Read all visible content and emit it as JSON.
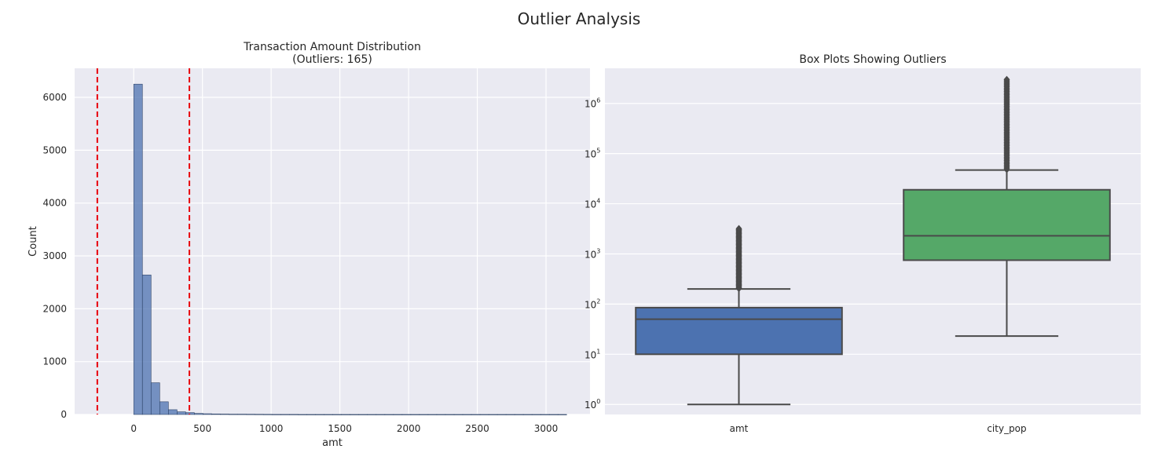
{
  "figure": {
    "suptitle": "Outlier Analysis"
  },
  "chart_data": [
    {
      "type": "bar",
      "title_line1": "Transaction Amount Distribution",
      "title_line2": "(Outliers: 165)",
      "xlabel": "amt",
      "ylabel": "Count",
      "xlim": [
        -430,
        3320
      ],
      "ylim": [
        0,
        6550
      ],
      "xticks": [
        0,
        500,
        1000,
        1500,
        2000,
        2500,
        3000
      ],
      "yticks": [
        0,
        1000,
        2000,
        3000,
        4000,
        5000,
        6000
      ],
      "bin_width": 63,
      "bin_start": 0,
      "counts": [
        6250,
        2640,
        600,
        240,
        90,
        50,
        35,
        20,
        14,
        10,
        8,
        6,
        6,
        5,
        4,
        3,
        2,
        2,
        2,
        1,
        1,
        1,
        1,
        1,
        1,
        1,
        1,
        1,
        1,
        1,
        1,
        1,
        1,
        1,
        1,
        1,
        1,
        1,
        1,
        1,
        1,
        1,
        1,
        1,
        1,
        1,
        1,
        1,
        1,
        1
      ],
      "threshold_lines": [
        -265,
        405
      ],
      "bar_color": "#4c72b0",
      "line_color": "#e8000b",
      "grid": true
    },
    {
      "type": "box",
      "title": "Box Plots Showing Outliers",
      "yscale": "log",
      "ylim_log10": [
        -0.2,
        6.7
      ],
      "ytick_exponents": [
        "0",
        "1",
        "2",
        "3",
        "4",
        "5",
        "6"
      ],
      "categories": [
        "amt",
        "city_pop"
      ],
      "boxes": [
        {
          "name": "amt",
          "whisker_low": 1,
          "q1": 10,
          "median": 50,
          "q3": 85,
          "whisker_high": 200,
          "outlier_min": 205,
          "outlier_max": 3200,
          "color": "#4c72b0"
        },
        {
          "name": "city_pop",
          "whisker_low": 23,
          "q1": 750,
          "median": 2300,
          "q3": 19000,
          "whisker_high": 47000,
          "outlier_min": 48000,
          "outlier_max": 3000000,
          "color": "#55a868"
        }
      ],
      "grid": true
    }
  ]
}
